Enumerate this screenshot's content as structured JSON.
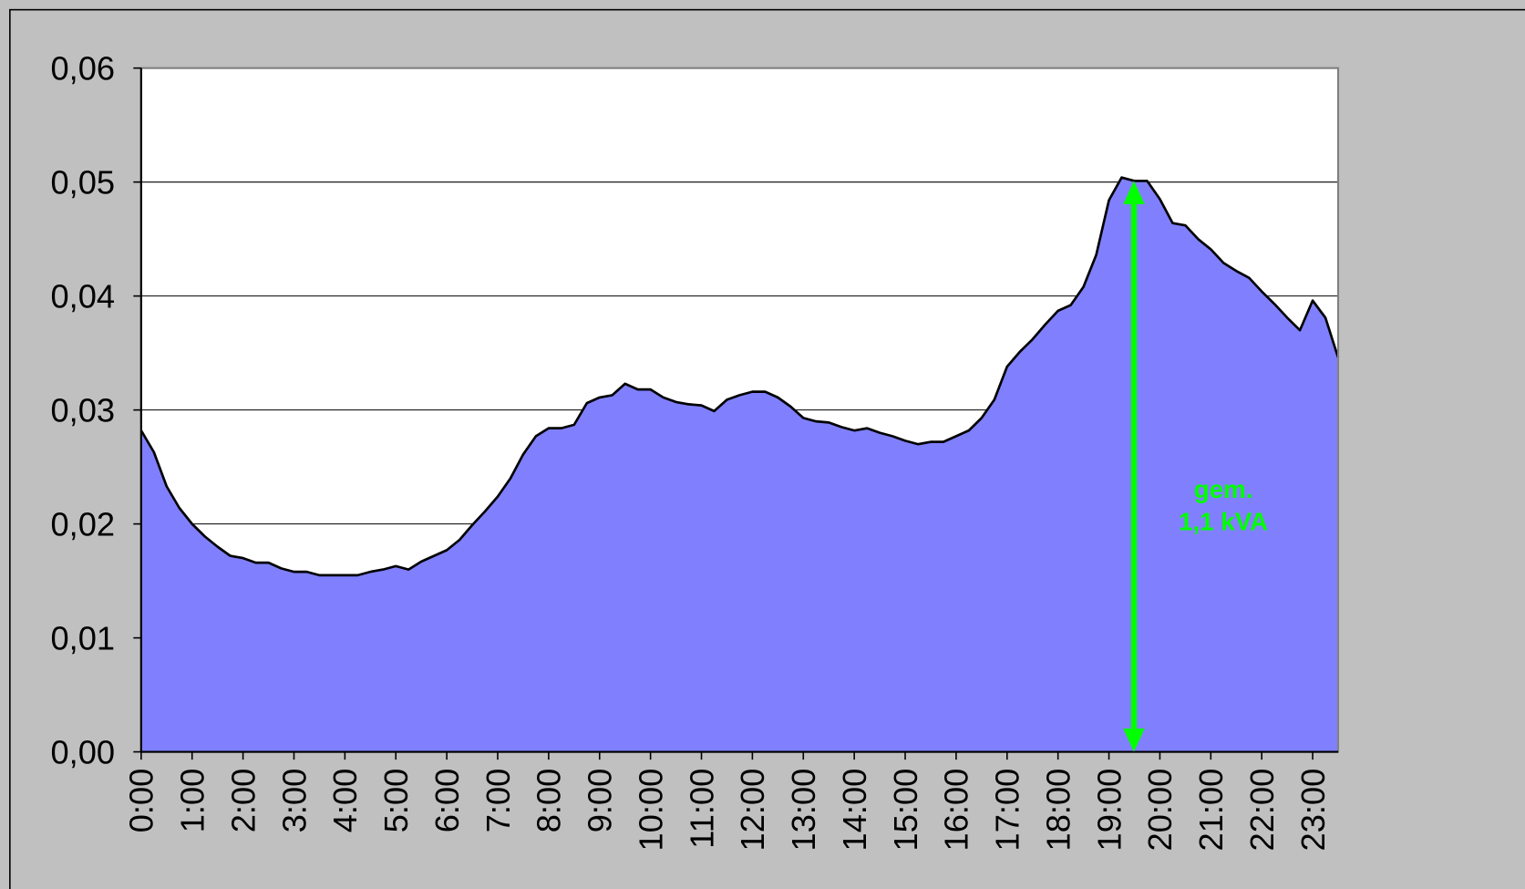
{
  "chart_data": {
    "type": "area",
    "categories": [
      "0:00",
      null,
      null,
      null,
      "1:00",
      null,
      null,
      null,
      "2:00",
      null,
      null,
      null,
      "3:00",
      null,
      null,
      null,
      "4:00",
      null,
      null,
      null,
      "5:00",
      null,
      null,
      null,
      "6:00",
      null,
      null,
      null,
      "7:00",
      null,
      null,
      null,
      "8:00",
      null,
      null,
      null,
      "9:00",
      null,
      null,
      null,
      "10:00",
      null,
      null,
      null,
      "11:00",
      null,
      null,
      null,
      "12:00",
      null,
      null,
      null,
      "13:00",
      null,
      null,
      null,
      "14:00",
      null,
      null,
      null,
      "15:00",
      null,
      null,
      null,
      "16:00",
      null,
      null,
      null,
      "17:00",
      null,
      null,
      null,
      "18:00",
      null,
      null,
      null,
      "19:00",
      null,
      null,
      null,
      "20:00",
      null,
      null,
      null,
      "21:00",
      null,
      null,
      null,
      "22:00",
      null,
      null,
      null,
      "23:00",
      null,
      null
    ],
    "values": [
      0.0282,
      0.0263,
      0.0233,
      0.0214,
      0.02,
      0.0189,
      0.018,
      0.0172,
      0.017,
      0.0166,
      0.0166,
      0.0161,
      0.0158,
      0.0158,
      0.0155,
      0.0155,
      0.0155,
      0.0155,
      0.0158,
      0.016,
      0.0163,
      0.016,
      0.0167,
      0.0172,
      0.0177,
      0.0186,
      0.0199,
      0.0211,
      0.0224,
      0.024,
      0.0261,
      0.0277,
      0.0284,
      0.0284,
      0.0287,
      0.0306,
      0.0311,
      0.0313,
      0.0323,
      0.0318,
      0.0318,
      0.0311,
      0.0307,
      0.0305,
      0.0304,
      0.0299,
      0.0309,
      0.0313,
      0.0316,
      0.0316,
      0.0311,
      0.0303,
      0.0293,
      0.029,
      0.0289,
      0.0285,
      0.0282,
      0.0284,
      0.028,
      0.0277,
      0.0273,
      0.027,
      0.0272,
      0.0272,
      0.0277,
      0.0282,
      0.0293,
      0.0309,
      0.0338,
      0.0351,
      0.0362,
      0.0375,
      0.0387,
      0.0392,
      0.0408,
      0.0436,
      0.0484,
      0.0504,
      0.0501,
      0.0501,
      0.0485,
      0.0464,
      0.0462,
      0.045,
      0.0441,
      0.0429,
      0.0422,
      0.0416,
      0.0404,
      0.0393,
      0.0381,
      0.037,
      0.0396,
      0.0381,
      0.0346
    ],
    "color": "#8080ff",
    "ylim": [
      0,
      0.06
    ],
    "yticks": [
      {
        "value": 0,
        "label": "0,00"
      },
      {
        "value": 0.01,
        "label": "0,01"
      },
      {
        "value": 0.02,
        "label": "0,02"
      },
      {
        "value": 0.03,
        "label": "0,03"
      },
      {
        "value": 0.04,
        "label": "0,04"
      },
      {
        "value": 0.05,
        "label": "0,05"
      },
      {
        "value": 0.06,
        "label": "0,06"
      }
    ],
    "grid": true,
    "annotations": [
      "gem.",
      "1,1 kVA"
    ]
  }
}
